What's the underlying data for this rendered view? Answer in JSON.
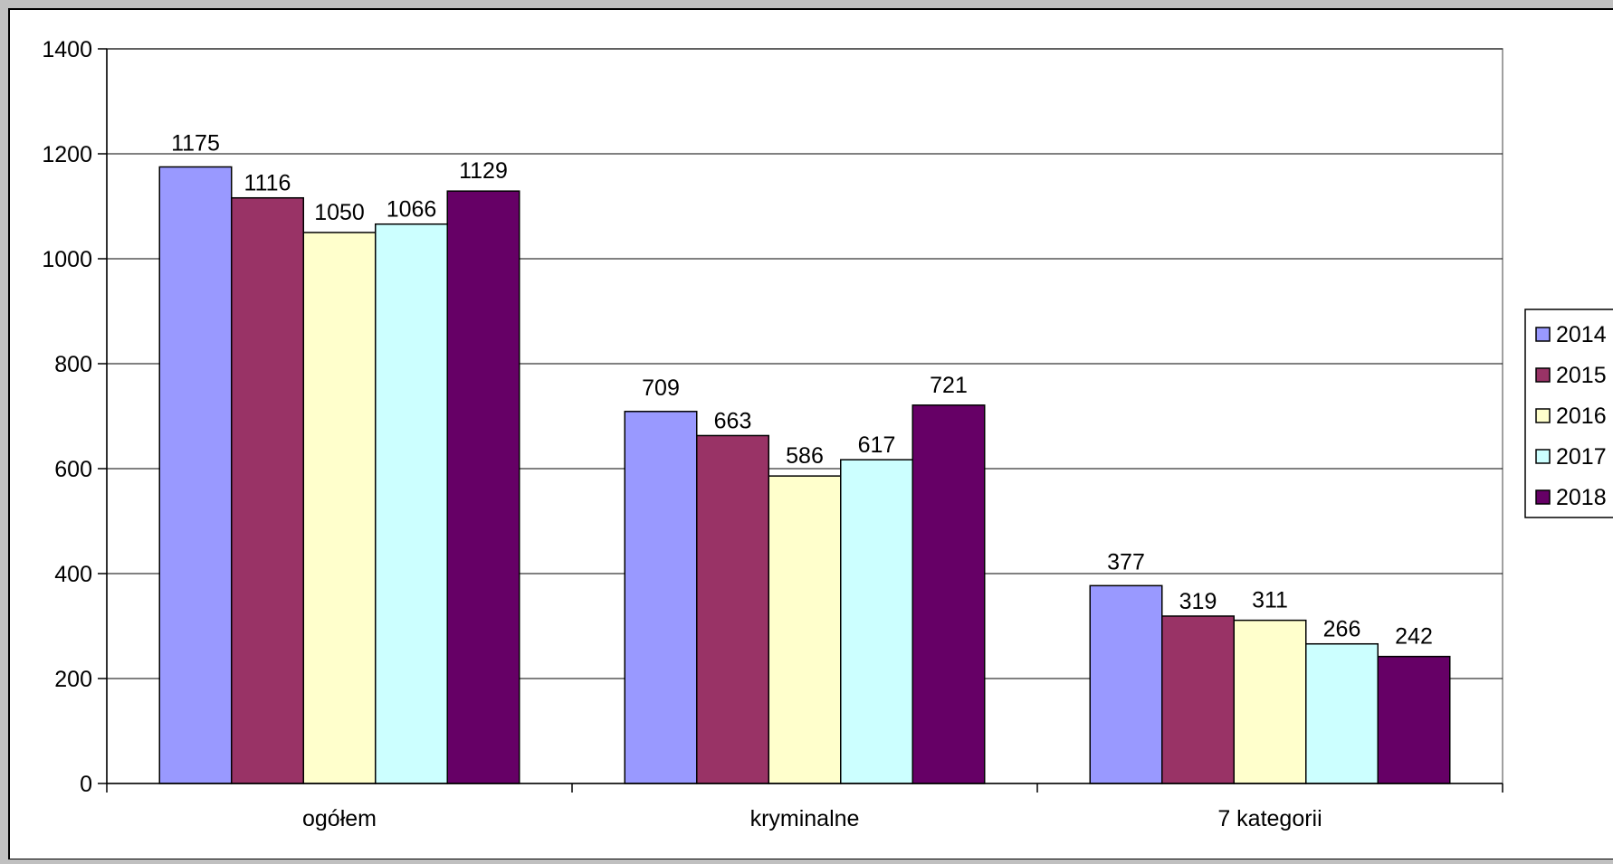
{
  "chart_data": {
    "type": "bar",
    "categories": [
      "ogółem",
      "kryminalne",
      "7 kategorii"
    ],
    "series": [
      {
        "name": "2014",
        "color": "#9999FF",
        "values": [
          1175,
          709,
          377
        ]
      },
      {
        "name": "2015",
        "color": "#993366",
        "values": [
          1116,
          663,
          319
        ]
      },
      {
        "name": "2016",
        "color": "#FFFFCC",
        "values": [
          1050,
          586,
          311
        ]
      },
      {
        "name": "2017",
        "color": "#CCFFFF",
        "values": [
          1066,
          617,
          266
        ]
      },
      {
        "name": "2018",
        "color": "#660066",
        "values": [
          1129,
          721,
          242
        ]
      }
    ],
    "ylim": [
      0,
      1400
    ],
    "yticks": [
      0,
      200,
      400,
      600,
      800,
      1000,
      1200,
      1400
    ],
    "grid": true,
    "legend_position": "right",
    "data_labels": true
  }
}
